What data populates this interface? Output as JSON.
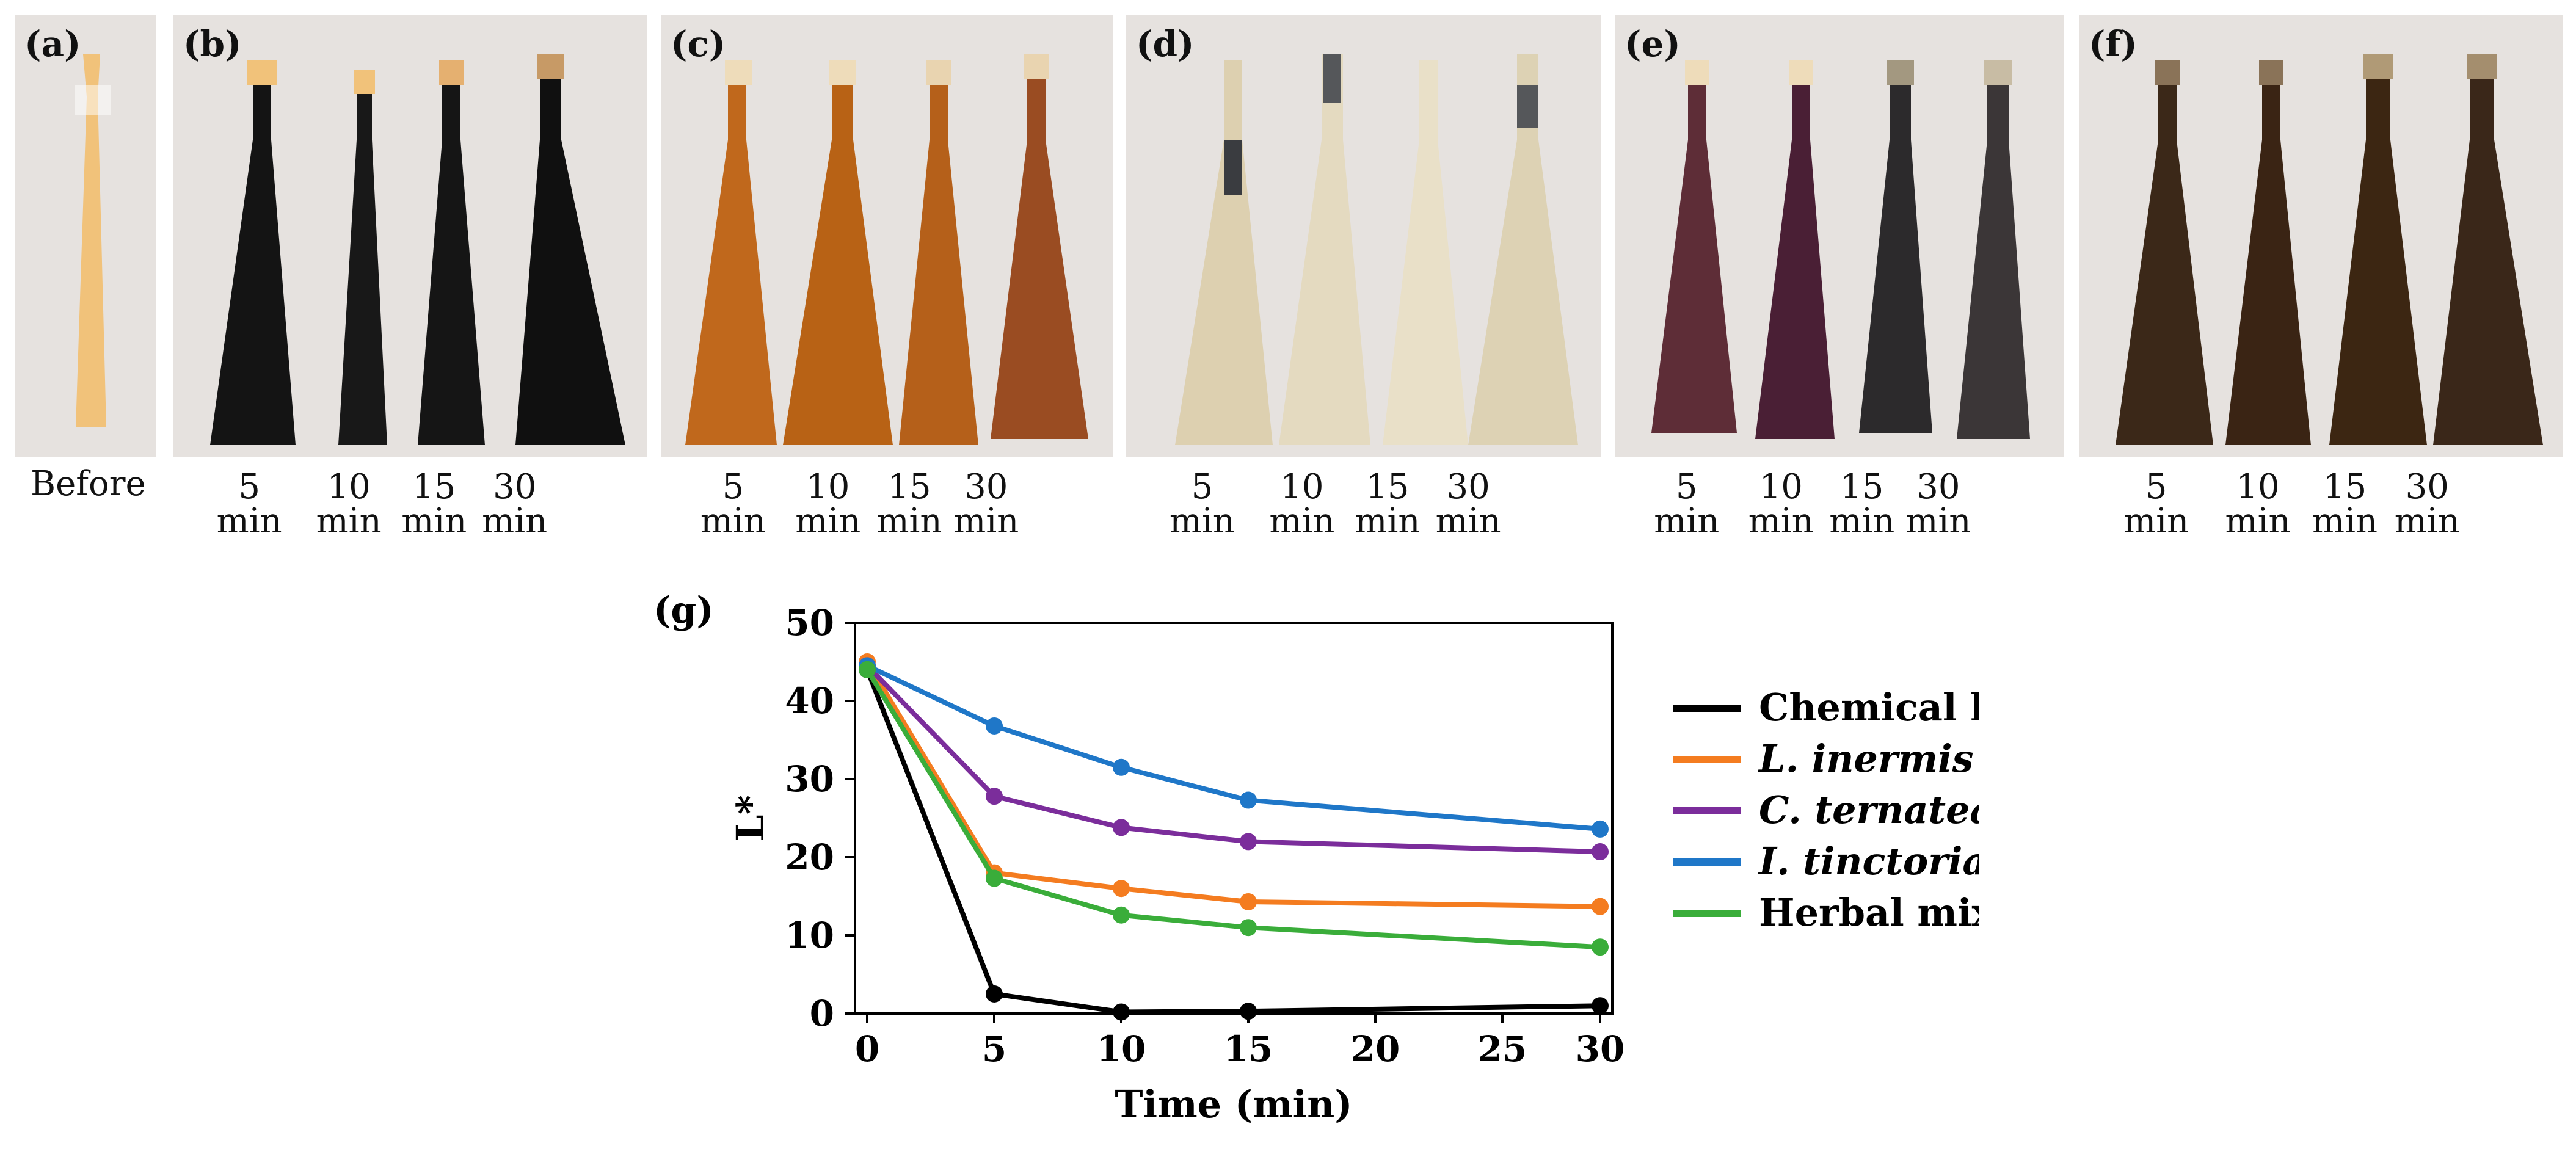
{
  "panels": [
    {
      "label": "(a)",
      "caption": "Before"
    },
    {
      "label": "(b)",
      "times": [
        {
          "num": "5",
          "unit": "min"
        },
        {
          "num": "10",
          "unit": "min"
        },
        {
          "num": "15",
          "unit": "min"
        },
        {
          "num": "30",
          "unit": "min"
        }
      ]
    },
    {
      "label": "(c)",
      "times": [
        {
          "num": "5",
          "unit": "min"
        },
        {
          "num": "10",
          "unit": "min"
        },
        {
          "num": "15",
          "unit": "min"
        },
        {
          "num": "30",
          "unit": "min"
        }
      ]
    },
    {
      "label": "(d)",
      "times": [
        {
          "num": "5",
          "unit": "min"
        },
        {
          "num": "10",
          "unit": "min"
        },
        {
          "num": "15",
          "unit": "min"
        },
        {
          "num": "30",
          "unit": "min"
        }
      ]
    },
    {
      "label": "(e)",
      "times": [
        {
          "num": "5",
          "unit": "min"
        },
        {
          "num": "10",
          "unit": "min"
        },
        {
          "num": "15",
          "unit": "min"
        },
        {
          "num": "30",
          "unit": "min"
        }
      ]
    },
    {
      "label": "(f)",
      "times": [
        {
          "num": "5",
          "unit": "min"
        },
        {
          "num": "10",
          "unit": "min"
        },
        {
          "num": "15",
          "unit": "min"
        },
        {
          "num": "30",
          "unit": "min"
        }
      ]
    }
  ],
  "colors": {
    "panel_bg": "#e6e2df",
    "strand_a": "#f1c27a",
    "strand_b": [
      "#141414",
      "#181818",
      "#151515",
      "#101010"
    ],
    "strand_c": [
      "#c0681c",
      "#b86215",
      "#b5601a",
      "#9a4c22"
    ],
    "strand_d": [
      "#ddd0b0",
      "#e4dac0",
      "#e9e0c8",
      "#ddd2b4"
    ],
    "strand_e": [
      "#5e2d37",
      "#4a1f35",
      "#2c2a2c",
      "#3b3637"
    ],
    "strand_f": [
      "#3b2818",
      "#3a2414",
      "#3c2612",
      "#3a2719"
    ]
  },
  "chart_data": {
    "type": "line",
    "panel_label": "(g)",
    "xlabel": "Time (min)",
    "ylabel": "L*",
    "x_ticks": [
      "0",
      "5",
      "10",
      "15",
      "20",
      "25",
      "30"
    ],
    "x_tick_values": [
      0,
      5,
      10,
      15,
      20,
      25,
      30
    ],
    "y_ticks": [
      "0",
      "10",
      "20",
      "30",
      "40",
      "50"
    ],
    "xlim": [
      0,
      30
    ],
    "ylim": [
      0,
      50
    ],
    "x": [
      0,
      5,
      10,
      15,
      30
    ],
    "series": [
      {
        "name": "Chemical hair dye",
        "italic": false,
        "color": "#000000",
        "values": [
          44,
          2.5,
          0.2,
          0.3,
          1
        ]
      },
      {
        "name": "L. inermis",
        "italic": true,
        "color": "#f47c20",
        "values": [
          45,
          18,
          16,
          14.3,
          13.7
        ]
      },
      {
        "name": "C. ternatea",
        "italic": true,
        "color": "#7b2d9b",
        "values": [
          44.5,
          27.8,
          23.8,
          22,
          20.7
        ]
      },
      {
        "name": "I. tinctoria",
        "italic": true,
        "color": "#1f77c8",
        "values": [
          44.5,
          36.8,
          31.5,
          27.3,
          23.6
        ]
      },
      {
        "name": "Herbal mixture",
        "italic": false,
        "color": "#3aad3a",
        "values": [
          44,
          17.3,
          12.6,
          11,
          8.5
        ]
      }
    ]
  }
}
